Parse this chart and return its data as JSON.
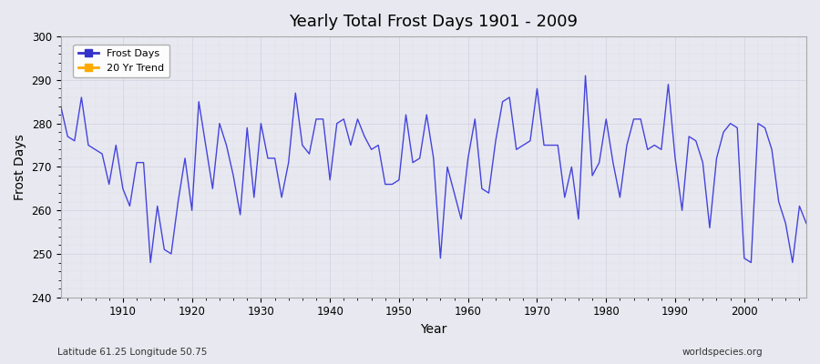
{
  "title": "Yearly Total Frost Days 1901 - 2009",
  "xlabel": "Year",
  "ylabel": "Frost Days",
  "subtitle_left": "Latitude 61.25 Longitude 50.75",
  "subtitle_right": "worldspecies.org",
  "legend_entries": [
    "Frost Days",
    "20 Yr Trend"
  ],
  "legend_colors": [
    "#3333cc",
    "#ffaa00"
  ],
  "line_color": "#4444dd",
  "ylim": [
    240,
    300
  ],
  "xlim": [
    1901,
    2009
  ],
  "background_color": "#e8e8f0",
  "grid_color": "#ccccdd",
  "years": [
    1901,
    1902,
    1903,
    1904,
    1905,
    1906,
    1907,
    1908,
    1909,
    1910,
    1911,
    1912,
    1913,
    1914,
    1915,
    1916,
    1917,
    1918,
    1919,
    1920,
    1921,
    1922,
    1923,
    1924,
    1925,
    1926,
    1927,
    1928,
    1929,
    1930,
    1931,
    1932,
    1933,
    1934,
    1935,
    1936,
    1937,
    1938,
    1939,
    1940,
    1941,
    1942,
    1943,
    1944,
    1945,
    1946,
    1947,
    1948,
    1949,
    1950,
    1951,
    1952,
    1953,
    1954,
    1955,
    1956,
    1957,
    1958,
    1959,
    1960,
    1961,
    1962,
    1963,
    1964,
    1965,
    1966,
    1967,
    1968,
    1969,
    1970,
    1971,
    1972,
    1973,
    1974,
    1975,
    1976,
    1977,
    1978,
    1979,
    1980,
    1981,
    1982,
    1983,
    1984,
    1985,
    1986,
    1987,
    1988,
    1989,
    1990,
    1991,
    1992,
    1993,
    1994,
    1995,
    1996,
    1997,
    1998,
    1999,
    2000,
    2001,
    2002,
    2003,
    2004,
    2005,
    2006,
    2007,
    2008,
    2009
  ],
  "values": [
    284,
    277,
    276,
    286,
    275,
    274,
    273,
    266,
    275,
    265,
    261,
    271,
    271,
    248,
    261,
    251,
    250,
    262,
    272,
    260,
    285,
    275,
    265,
    280,
    275,
    268,
    259,
    279,
    263,
    280,
    272,
    272,
    263,
    271,
    287,
    275,
    273,
    281,
    281,
    267,
    280,
    281,
    275,
    281,
    277,
    274,
    275,
    266,
    266,
    267,
    282,
    271,
    272,
    282,
    272,
    249,
    270,
    264,
    258,
    272,
    281,
    265,
    264,
    276,
    285,
    286,
    274,
    275,
    276,
    288,
    275,
    275,
    275,
    263,
    270,
    258,
    291,
    268,
    271,
    281,
    271,
    263,
    275,
    281,
    281,
    274,
    275,
    274,
    289,
    272,
    260,
    277,
    276,
    271,
    256,
    272,
    278,
    280,
    279,
    249,
    248,
    280,
    279,
    274,
    262,
    257,
    248,
    261,
    257
  ]
}
